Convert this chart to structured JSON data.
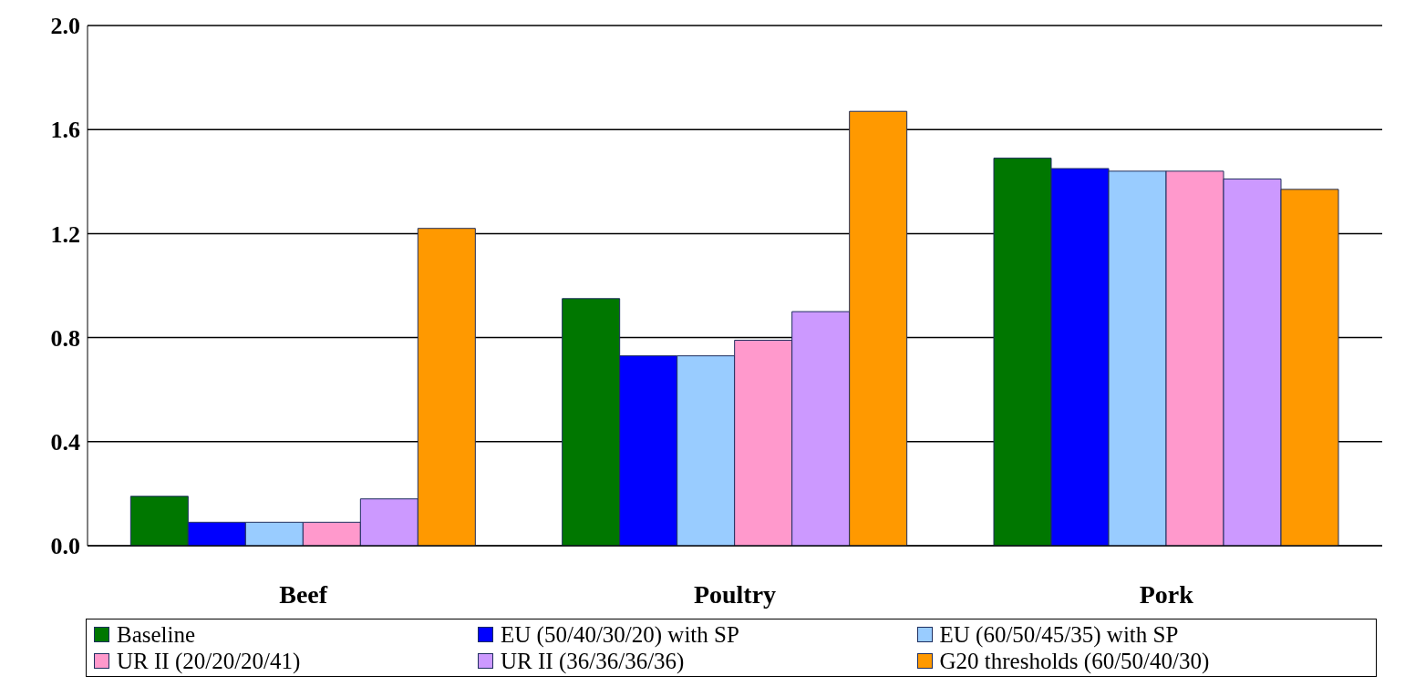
{
  "chart_data": {
    "type": "bar",
    "categories": [
      "Beef",
      "Poultry",
      "Pork"
    ],
    "series": [
      {
        "name": "Baseline",
        "color": "#007700",
        "values": [
          0.19,
          0.95,
          1.49
        ]
      },
      {
        "name": "EU (50/40/30/20) with SP",
        "color": "#0000ff",
        "values": [
          0.09,
          0.73,
          1.45
        ]
      },
      {
        "name": "EU (60/50/45/35) with SP",
        "color": "#99ccff",
        "values": [
          0.09,
          0.73,
          1.44
        ]
      },
      {
        "name": "UR II (20/20/20/41)",
        "color": "#ff99cc",
        "values": [
          0.09,
          0.79,
          1.44
        ]
      },
      {
        "name": "UR II (36/36/36/36)",
        "color": "#cc99ff",
        "values": [
          0.18,
          0.9,
          1.41
        ]
      },
      {
        "name": "G20 thresholds (60/50/40/30)",
        "color": "#ff9900",
        "values": [
          1.22,
          1.67,
          1.37
        ]
      }
    ],
    "ylim": [
      0,
      2
    ],
    "yticks": [
      {
        "value": 0,
        "label": "0.0"
      },
      {
        "value": 0.4,
        "label": "0.4"
      },
      {
        "value": 0.8,
        "label": "0.8"
      },
      {
        "value": 1.2,
        "label": "1.2"
      },
      {
        "value": 1.6,
        "label": "1.6"
      },
      {
        "value": 2,
        "label": "2.0"
      }
    ],
    "grid": "y",
    "legend": "bottom"
  }
}
